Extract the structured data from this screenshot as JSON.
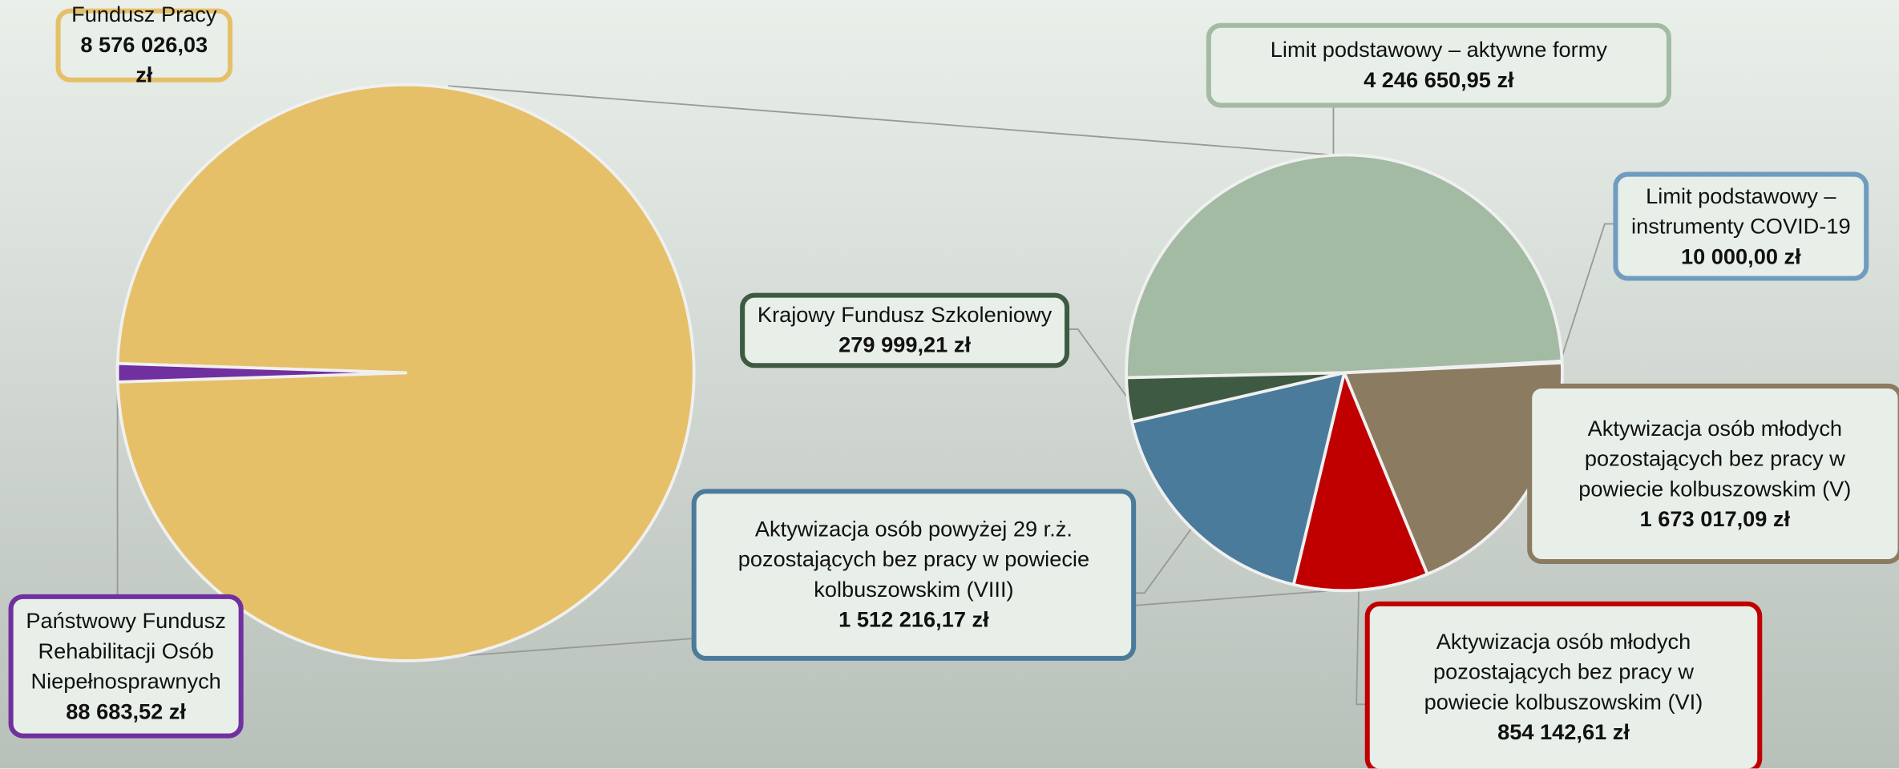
{
  "chart_data": [
    {
      "type": "pie",
      "categories": [
        "Fundusz Pracy",
        "Państwowy Fundusz Rehabilitacji Osób Niepełnosprawnych"
      ],
      "values": [
        8576026.03,
        88683.52
      ],
      "value_labels": [
        "8 576 026,03 zł",
        "88 683,52 zł"
      ],
      "colors": [
        "#e6c068",
        "#7030a0"
      ]
    },
    {
      "type": "pie",
      "categories": [
        "Limit podstawowy – aktywne formy",
        "Limit podstawowy – instrumenty COVID-19",
        "Aktywizacja osób młodych pozostających bez pracy w powiecie kolbuszowskim (V)",
        "Aktywizacja osób młodych pozostających bez pracy w powiecie kolbuszowskim (VI)",
        "Aktywizacja osób powyżej 29 r.ż. pozostających bez pracy w powiecie kolbuszowskim (VIII)",
        "Krajowy Fundusz Szkoleniowy"
      ],
      "values": [
        4246650.95,
        10000.0,
        1673017.09,
        854142.61,
        1512216.17,
        279999.21
      ],
      "value_labels": [
        "4 246 650,95 zł",
        "10 000,00 zł",
        "1 673 017,09 zł",
        "854 142,61 zł",
        "1 512 216,17 zł",
        "279 999,21 zł"
      ],
      "colors": [
        "#a3bba3",
        "#6f9cc0",
        "#8b7b60",
        "#c00000",
        "#4b7b9b",
        "#3e5a42"
      ]
    }
  ]
}
